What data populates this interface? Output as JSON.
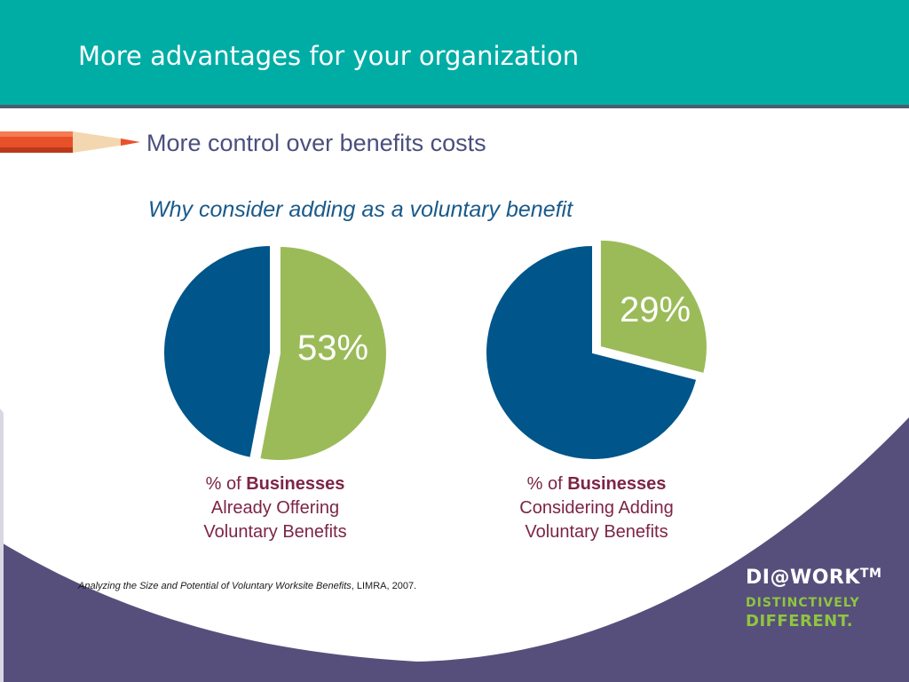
{
  "header": {
    "title": "More advantages for your organization"
  },
  "section": {
    "subtitle": "More control over benefits costs",
    "question": "Why consider adding as a voluntary benefit"
  },
  "chart_data": [
    {
      "type": "pie",
      "slices": [
        {
          "label": "53%",
          "value": 53,
          "color": "#9bbb59"
        },
        {
          "label": "",
          "value": 47,
          "color": "#00558a"
        }
      ],
      "caption": {
        "prefix": "% of ",
        "bold": "Businesses",
        "line2": "Already Offering",
        "line3": "Voluntary Benefits"
      }
    },
    {
      "type": "pie",
      "slices": [
        {
          "label": "29%",
          "value": 29,
          "color": "#9bbb59"
        },
        {
          "label": "",
          "value": 71,
          "color": "#00558a"
        }
      ],
      "caption": {
        "prefix": "% of ",
        "bold": "Businesses",
        "line2": "Considering Adding",
        "line3": "Voluntary Benefits"
      }
    }
  ],
  "citation": {
    "title": "Analyzing the Size and Potential of Voluntary Worksite Benefits",
    "source": ", LIMRA, 2007."
  },
  "logo": {
    "main": "DI@WORK",
    "tm": "TM",
    "line2": "DISTINCTIVELY",
    "line3": "DIFFERENT."
  },
  "colors": {
    "header": "#00ada5",
    "wave": "#574f7b",
    "green": "#9bbb59",
    "blue": "#00558a",
    "caption": "#7d2446"
  }
}
